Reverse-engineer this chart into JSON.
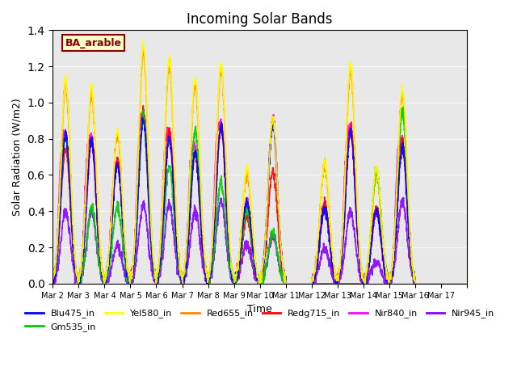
{
  "title": "Incoming Solar Bands",
  "xlabel": "Time",
  "ylabel": "Solar Radiation (W/m2)",
  "ylim": [
    0,
    1.4
  ],
  "annotation_text": "BA_arable",
  "annotation_color": "#8B0000",
  "annotation_bg": "#FFFFCC",
  "bg_color": "#E8E8E8",
  "series": [
    {
      "name": "Blu475_in",
      "color": "#0000FF",
      "lw": 1.2
    },
    {
      "name": "Gm535_in",
      "color": "#00CC00",
      "lw": 1.2
    },
    {
      "name": "Yel580_in",
      "color": "#FFFF00",
      "lw": 1.2
    },
    {
      "name": "Red655_in",
      "color": "#FF8800",
      "lw": 1.2
    },
    {
      "name": "Redg715_in",
      "color": "#FF0000",
      "lw": 1.2
    },
    {
      "name": "Nir840_in",
      "color": "#FF00FF",
      "lw": 1.2
    },
    {
      "name": "Nir945_in",
      "color": "#8800FF",
      "lw": 1.2
    }
  ],
  "x_ticks": [
    "Mar 2",
    "Mar 3",
    "Mar 4",
    "Mar 5",
    "Mar 6",
    "Mar 7",
    "Mar 8",
    "Mar 9",
    "Mar 10",
    "Mar 11",
    "Mar 12",
    "Mar 13",
    "Mar 14",
    "Mar 15",
    "Mar 16",
    "Mar 17"
  ],
  "num_days": 16,
  "points_per_day": 144
}
